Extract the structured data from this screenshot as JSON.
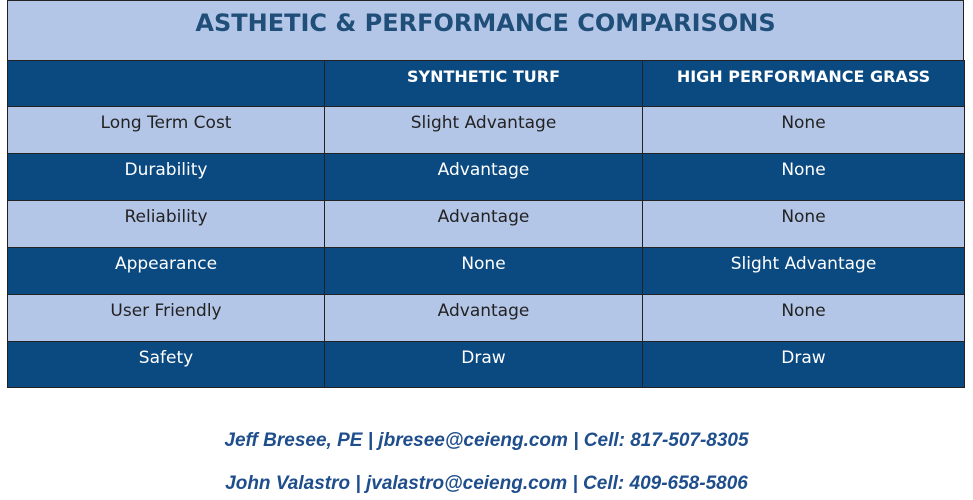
{
  "table": {
    "title": "ASTHETIC & PERFORMANCE COMPARISONS",
    "columns": [
      "SYNTHETIC TURF",
      "HIGH PERFORMANCE GRASS"
    ],
    "rows": [
      [
        "Long Term Cost",
        "Slight Advantage",
        "None"
      ],
      [
        "Durability",
        "Advantage",
        "None"
      ],
      [
        "Reliability",
        "Advantage",
        "None"
      ],
      [
        "Appearance",
        "None",
        "Slight Advantage"
      ],
      [
        "User Friendly",
        "Advantage",
        "None"
      ],
      [
        "Safety",
        "Draw",
        "Draw"
      ]
    ]
  },
  "contacts": [
    "Jeff Bresee, PE | jbresee@ceieng.com | Cell: 817-507-8305",
    "John Valastro | jvalastro@ceieng.com | Cell: 409-658-5806"
  ]
}
